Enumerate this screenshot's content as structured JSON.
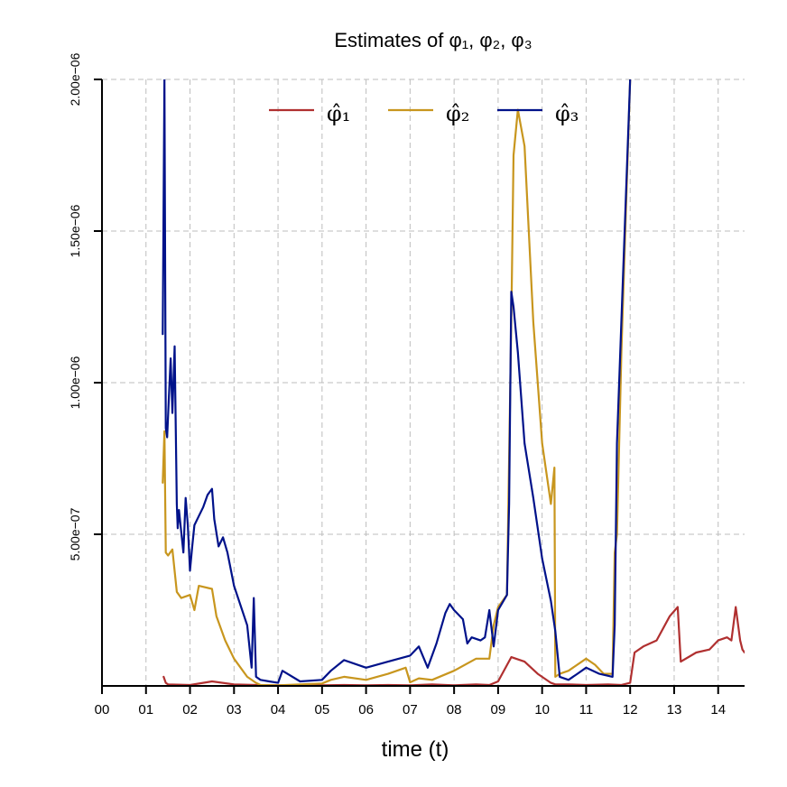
{
  "chart_data": {
    "type": "line",
    "title": "Estimates of φ₁, φ₂, φ₃",
    "xlabel": "time (t)",
    "ylabel": "",
    "xlim": [
      0,
      14.6
    ],
    "ylim": [
      0,
      2e-06
    ],
    "x_ticks": [
      {
        "value": 0,
        "label": "00"
      },
      {
        "value": 1,
        "label": "01"
      },
      {
        "value": 2,
        "label": "02"
      },
      {
        "value": 3,
        "label": "03"
      },
      {
        "value": 4,
        "label": "04"
      },
      {
        "value": 5,
        "label": "05"
      },
      {
        "value": 6,
        "label": "06"
      },
      {
        "value": 7,
        "label": "07"
      },
      {
        "value": 8,
        "label": "08"
      },
      {
        "value": 9,
        "label": "09"
      },
      {
        "value": 10,
        "label": "10"
      },
      {
        "value": 11,
        "label": "11"
      },
      {
        "value": 12,
        "label": "12"
      },
      {
        "value": 13,
        "label": "13"
      },
      {
        "value": 14,
        "label": "14"
      }
    ],
    "y_ticks": [
      {
        "value": 5e-07,
        "label": "5.00e−07"
      },
      {
        "value": 1e-06,
        "label": "1.00e−06"
      },
      {
        "value": 1.5e-06,
        "label": "1.50e−06"
      },
      {
        "value": 2e-06,
        "label": "2.00e−06"
      }
    ],
    "grid": true,
    "legend_position": "top",
    "series": [
      {
        "name": "φ̂₁",
        "color": "#b03030",
        "x": [
          1.4,
          1.45,
          1.5,
          2.0,
          2.5,
          3.0,
          3.5,
          4.0,
          4.5,
          5.0,
          5.5,
          6.0,
          6.5,
          7.0,
          7.5,
          8.0,
          8.5,
          8.8,
          9.0,
          9.3,
          9.6,
          9.9,
          10.2,
          10.3,
          10.6,
          11.0,
          11.5,
          11.8,
          12.0,
          12.1,
          12.3,
          12.6,
          12.9,
          13.08,
          13.15,
          13.5,
          13.8,
          14.0,
          14.2,
          14.3,
          14.4,
          14.5,
          14.55,
          14.6
        ],
        "y": [
          3e-08,
          1e-08,
          5e-09,
          3e-09,
          1.5e-08,
          5e-09,
          3e-09,
          2e-09,
          3e-09,
          2e-09,
          3e-09,
          2e-09,
          3e-09,
          2e-09,
          5e-09,
          2e-09,
          5e-09,
          3e-09,
          1.5e-08,
          9.5e-08,
          8e-08,
          4e-08,
          1e-08,
          5e-09,
          5e-09,
          3e-09,
          5e-09,
          3e-09,
          1e-08,
          1.1e-07,
          1.3e-07,
          1.5e-07,
          2.3e-07,
          2.6e-07,
          8e-08,
          1.1e-07,
          1.2e-07,
          1.5e-07,
          1.6e-07,
          1.5e-07,
          2.6e-07,
          1.5e-07,
          1.2e-07,
          1.1e-07
        ]
      },
      {
        "name": "φ̂₂",
        "color": "#c8961e",
        "x": [
          1.38,
          1.42,
          1.45,
          1.5,
          1.6,
          1.7,
          1.8,
          2.0,
          2.1,
          2.2,
          2.5,
          2.6,
          2.8,
          3.0,
          3.3,
          3.5,
          3.6,
          4.0,
          4.5,
          5.0,
          5.2,
          5.5,
          6.0,
          6.5,
          6.9,
          7.0,
          7.2,
          7.5,
          8.0,
          8.5,
          8.8,
          8.9,
          9.0,
          9.2,
          9.3,
          9.35,
          9.45,
          9.6,
          9.8,
          10.0,
          10.2,
          10.28,
          10.3,
          10.4,
          10.6,
          11.0,
          11.2,
          11.4,
          11.6,
          11.65,
          11.7,
          11.8,
          12.0
        ],
        "y": [
          6.7e-07,
          8.4e-07,
          4.4e-07,
          4.3e-07,
          4.5e-07,
          3.1e-07,
          2.9e-07,
          3e-07,
          2.5e-07,
          3.3e-07,
          3.2e-07,
          2.3e-07,
          1.5e-07,
          9e-08,
          3e-08,
          1e-08,
          3e-09,
          2e-09,
          5e-09,
          8e-09,
          2e-08,
          3e-08,
          2e-08,
          4e-08,
          6e-08,
          1.2e-08,
          2.5e-08,
          2e-08,
          5e-08,
          9e-08,
          9e-08,
          2e-07,
          2.6e-07,
          3e-07,
          1.2e-06,
          1.75e-06,
          1.9e-06,
          1.78e-06,
          1.2e-06,
          8e-07,
          6e-07,
          7.2e-07,
          3e-08,
          4e-08,
          5e-08,
          9e-08,
          7e-08,
          4e-08,
          4e-08,
          4.4e-07,
          5e-07,
          1.1e-06,
          2e-06
        ]
      },
      {
        "name": "φ̂₃",
        "color": "#00128a",
        "x": [
          1.38,
          1.42,
          1.45,
          1.48,
          1.52,
          1.56,
          1.6,
          1.65,
          1.7,
          1.72,
          1.75,
          1.85,
          1.9,
          1.95,
          2.0,
          2.05,
          2.1,
          2.2,
          2.3,
          2.4,
          2.5,
          2.55,
          2.65,
          2.75,
          2.85,
          3.0,
          3.3,
          3.4,
          3.45,
          3.5,
          3.6,
          3.8,
          4.0,
          4.1,
          4.5,
          5.0,
          5.2,
          5.5,
          6.0,
          6.5,
          7.0,
          7.2,
          7.4,
          7.6,
          7.8,
          7.9,
          8.0,
          8.2,
          8.3,
          8.4,
          8.6,
          8.7,
          8.8,
          8.9,
          9.0,
          9.2,
          9.25,
          9.3,
          9.35,
          9.45,
          9.6,
          9.8,
          10.0,
          10.2,
          10.3,
          10.4,
          10.6,
          10.8,
          11.0,
          11.3,
          11.6,
          11.65,
          11.7,
          12.0
        ],
        "y": [
          1.16e-06,
          2e-06,
          8.5e-07,
          8.2e-07,
          9.5e-07,
          1.08e-06,
          9e-07,
          1.12e-06,
          6e-07,
          5.2e-07,
          5.8e-07,
          4.4e-07,
          6.2e-07,
          5.3e-07,
          3.8e-07,
          4.6e-07,
          5.3e-07,
          5.6e-07,
          5.9e-07,
          6.3e-07,
          6.5e-07,
          5.5e-07,
          4.6e-07,
          4.9e-07,
          4.4e-07,
          3.3e-07,
          2e-07,
          6e-08,
          2.9e-07,
          3e-08,
          2e-08,
          1.5e-08,
          1e-08,
          5e-08,
          1.5e-08,
          2e-08,
          5e-08,
          8.5e-08,
          6e-08,
          8e-08,
          1e-07,
          1.3e-07,
          6e-08,
          1.4e-07,
          2.4e-07,
          2.7e-07,
          2.5e-07,
          2.2e-07,
          1.4e-07,
          1.6e-07,
          1.5e-07,
          1.6e-07,
          2.5e-07,
          1.3e-07,
          2.5e-07,
          3e-07,
          6e-07,
          1.3e-06,
          1.25e-06,
          1.1e-06,
          8e-07,
          6.2e-07,
          4.2e-07,
          2.8e-07,
          1.8e-07,
          3e-08,
          2e-08,
          4e-08,
          6e-08,
          4e-08,
          3e-08,
          2e-07,
          8e-07,
          2e-06
        ]
      }
    ]
  }
}
